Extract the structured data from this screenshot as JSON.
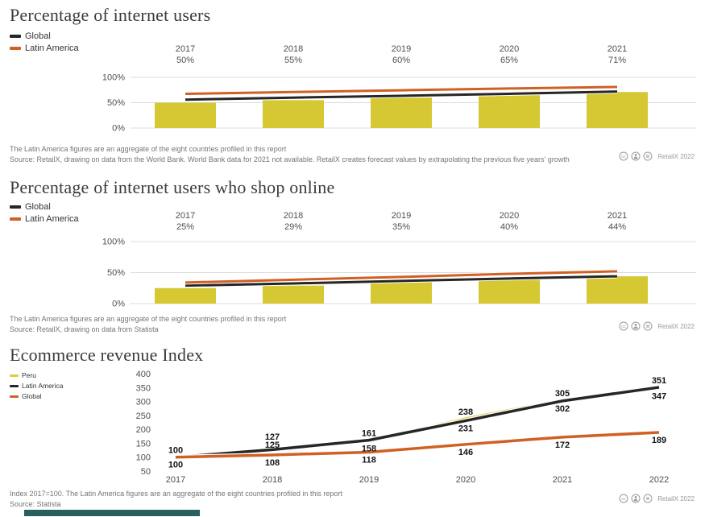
{
  "page": {
    "credit": "RetailX 2022",
    "credit_icons": [
      "cc-icon",
      "attribution-icon",
      "no-derivatives-icon"
    ],
    "colors": {
      "bar_yellow": "#d5c832",
      "line_black": "#262626",
      "line_orange": "#d06023",
      "footer_teal": "#27605e"
    }
  },
  "charts": [
    {
      "title": "Percentage of internet users",
      "chart_data": {
        "type": "bar+line",
        "categories": [
          "2017",
          "2018",
          "2019",
          "2020",
          "2021"
        ],
        "bar_labels": [
          "50%",
          "55%",
          "60%",
          "65%",
          "71%"
        ],
        "bars": {
          "name": "Percentage of internet users",
          "color": "#d5c832",
          "values": [
            50,
            55,
            60,
            65,
            71
          ]
        },
        "series": [
          {
            "name": "Global",
            "color": "#262626",
            "values": [
              56,
              60,
              63.5,
              67.5,
              72
            ]
          },
          {
            "name": "Latin America",
            "color": "#d06023",
            "values": [
              67.5,
              71,
              74.5,
              78,
              81
            ]
          }
        ],
        "yticks": [
          "100%",
          "50%",
          "0%"
        ],
        "ylim": [
          0,
          100
        ],
        "grid": true,
        "legend_position": "top-left"
      },
      "footnotes": [
        "The Latin America figures are an aggregate of the eight countries profiled in this report",
        "Source: RetailX, drawing on data from the World Bank. World Bank data for 2021 not available. RetailX creates forecast values by extrapolating the previous five years' growth"
      ]
    },
    {
      "title": "Percentage of internet users who shop online",
      "chart_data": {
        "type": "bar+line",
        "categories": [
          "2017",
          "2018",
          "2019",
          "2020",
          "2021"
        ],
        "bar_labels": [
          "25%",
          "29%",
          "35%",
          "40%",
          "44%"
        ],
        "bars": {
          "name": "Percentage of internet users who shop online",
          "color": "#d5c832",
          "values": [
            25,
            29,
            35,
            40,
            44
          ]
        },
        "series": [
          {
            "name": "Global",
            "color": "#262626",
            "values": [
              29,
              32.5,
              36.5,
              40.5,
              44
            ]
          },
          {
            "name": "Latin America",
            "color": "#d06023",
            "values": [
              34,
              38.5,
              43,
              48,
              52
            ]
          }
        ],
        "yticks": [
          "100%",
          "50%",
          "0%"
        ],
        "ylim": [
          0,
          100
        ],
        "grid": true,
        "legend_position": "top-left"
      },
      "footnotes": [
        "The Latin America figures are an aggregate of the eight countries profiled in this report",
        "Source: RetailX, drawing on data from Statista"
      ]
    },
    {
      "title": "Ecommerce revenue Index",
      "chart_data": {
        "type": "line",
        "categories": [
          "2017",
          "2018",
          "2019",
          "2020",
          "2021",
          "2022"
        ],
        "series": [
          {
            "name": "Peru",
            "color": "#e0cd3c",
            "values": [
              100,
              125,
              158,
              238,
              305,
              347
            ]
          },
          {
            "name": "Latin America",
            "color": "#262626",
            "values": [
              100,
              127,
              161,
              231,
              302,
              351
            ]
          },
          {
            "name": "Global",
            "color": "#d06023",
            "values": [
              100,
              108,
              118,
              146,
              172,
              189
            ]
          }
        ],
        "yticks": [
          400,
          350,
          300,
          250,
          200,
          150,
          100,
          50
        ],
        "ylim": [
          50,
          400
        ],
        "grid": false,
        "data_labels": true,
        "legend_position": "top-left"
      },
      "footnotes": [
        "Index 2017=100. The Latin America figures are an aggregate of the eight countries profiled in this report",
        "Source: Statista"
      ]
    }
  ]
}
